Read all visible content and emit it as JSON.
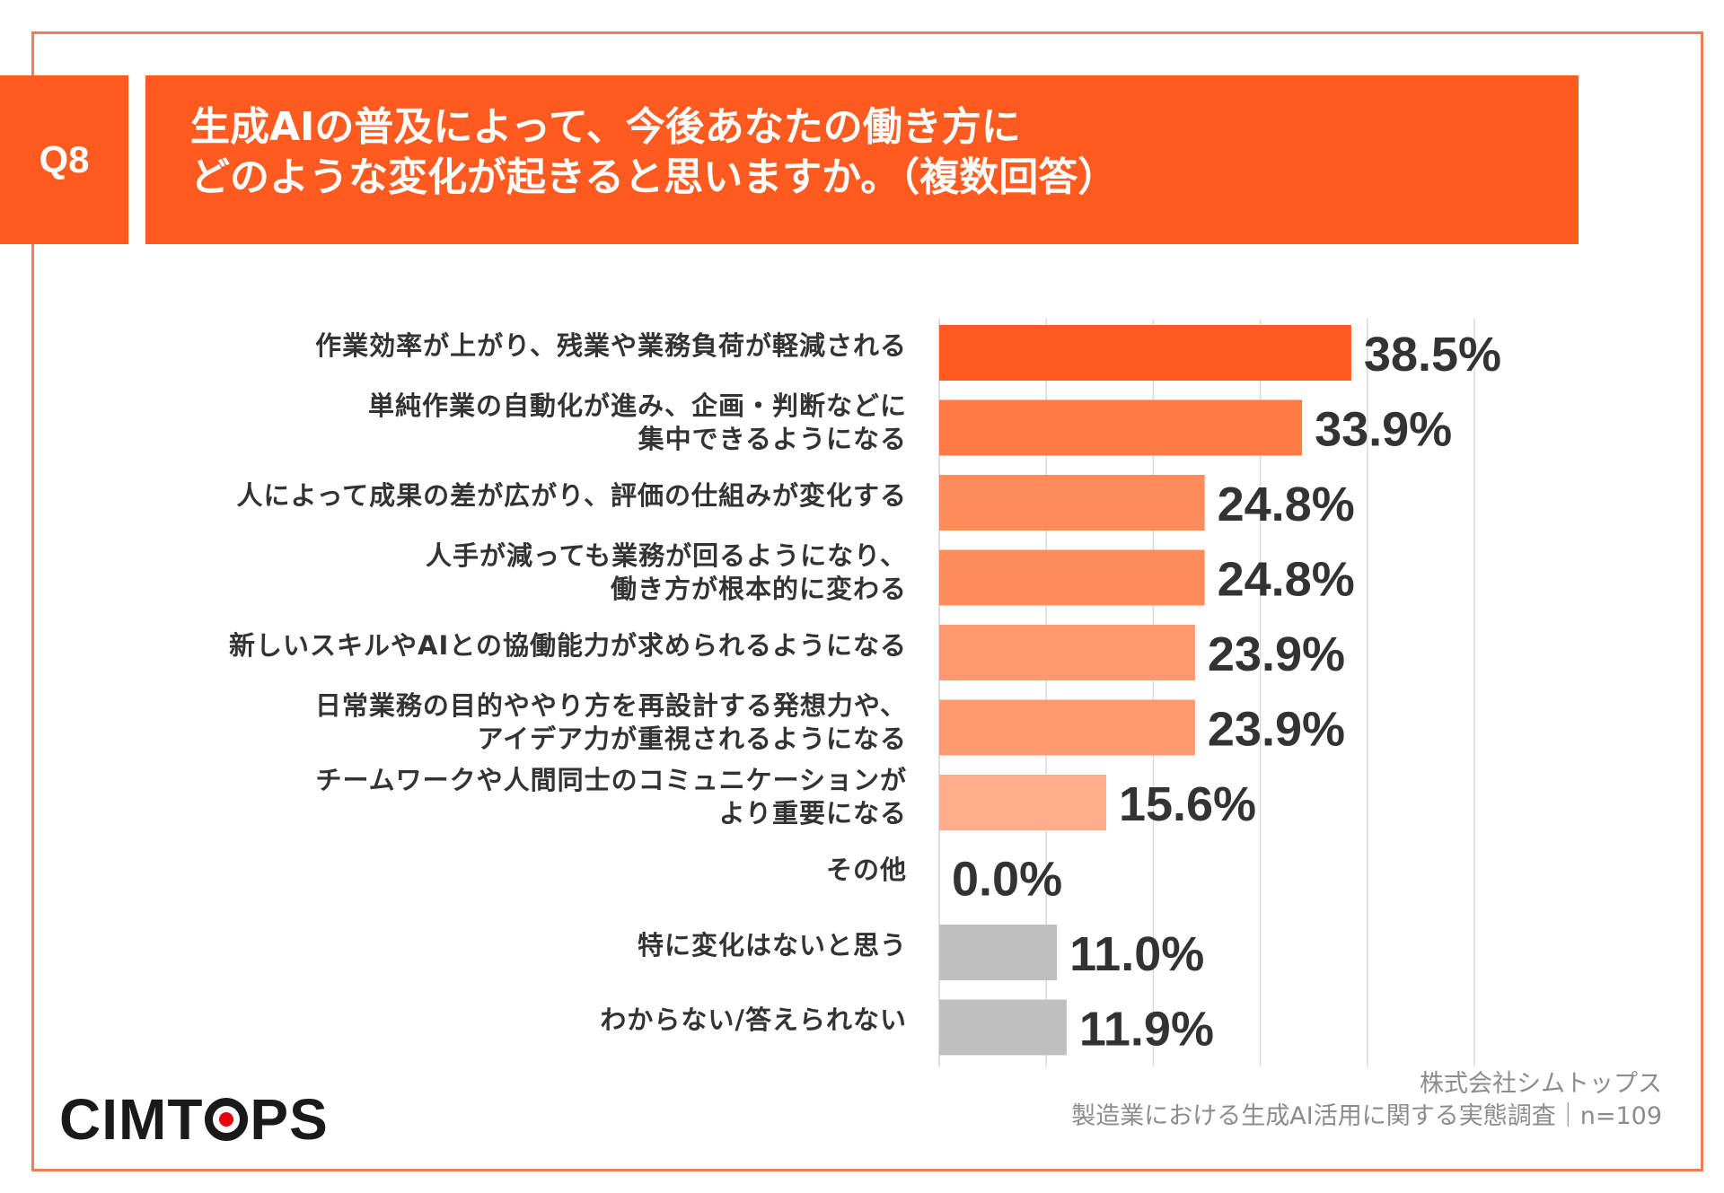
{
  "header": {
    "question_badge": "Q8",
    "title_line1": "生成AIの普及によって、今後あなたの働き方に",
    "title_line2": "どのような変化が起きると思いますか。（複数回答）"
  },
  "chart_data": {
    "type": "bar",
    "orientation": "horizontal",
    "xlim": [
      0,
      50
    ],
    "grid": true,
    "value_suffix": "%",
    "categories": [
      [
        "作業効率が上がり、残業や業務負荷が軽減される"
      ],
      [
        "単純作業の自動化が進み、企画・判断などに",
        "集中できるようになる"
      ],
      [
        "人によって成果の差が広がり、評価の仕組みが変化する"
      ],
      [
        "人手が減っても業務が回るようになり、",
        "働き方が根本的に変わる"
      ],
      [
        "新しいスキルやAIとの協働能力が求められるようになる"
      ],
      [
        "日常業務の目的ややり方を再設計する発想力や、",
        "アイデア力が重視されるようになる"
      ],
      [
        "チームワークや人間同士のコミュニケーションが",
        "より重要になる"
      ],
      [
        "その他"
      ],
      [
        "特に変化はないと思う"
      ],
      [
        "わからない/答えられない"
      ]
    ],
    "values": [
      38.5,
      33.9,
      24.8,
      24.8,
      23.9,
      23.9,
      15.6,
      0.0,
      11.0,
      11.9
    ],
    "value_labels": [
      "38.5%",
      "33.9%",
      "24.8%",
      "24.8%",
      "23.9%",
      "23.9%",
      "15.6%",
      "0.0%",
      "11.0%",
      "11.9%"
    ],
    "bar_colors": [
      "#ff5a1f",
      "#ff7a45",
      "#ff8c5a",
      "#ff8c5a",
      "#ff9a6e",
      "#ff9a6e",
      "#ffad8a",
      "#ffad8a",
      "#bfbfbf",
      "#bfbfbf"
    ],
    "gridline_color": "#d9d9d9"
  },
  "footer": {
    "company": "株式会社シムトップス",
    "survey": "製造業における生成AI活用に関する実態調査｜n=109",
    "logo_part1": "CIMT",
    "logo_part2": "PS"
  },
  "colors": {
    "accent": "#ff5a1f",
    "frame": "#ee7f50"
  }
}
